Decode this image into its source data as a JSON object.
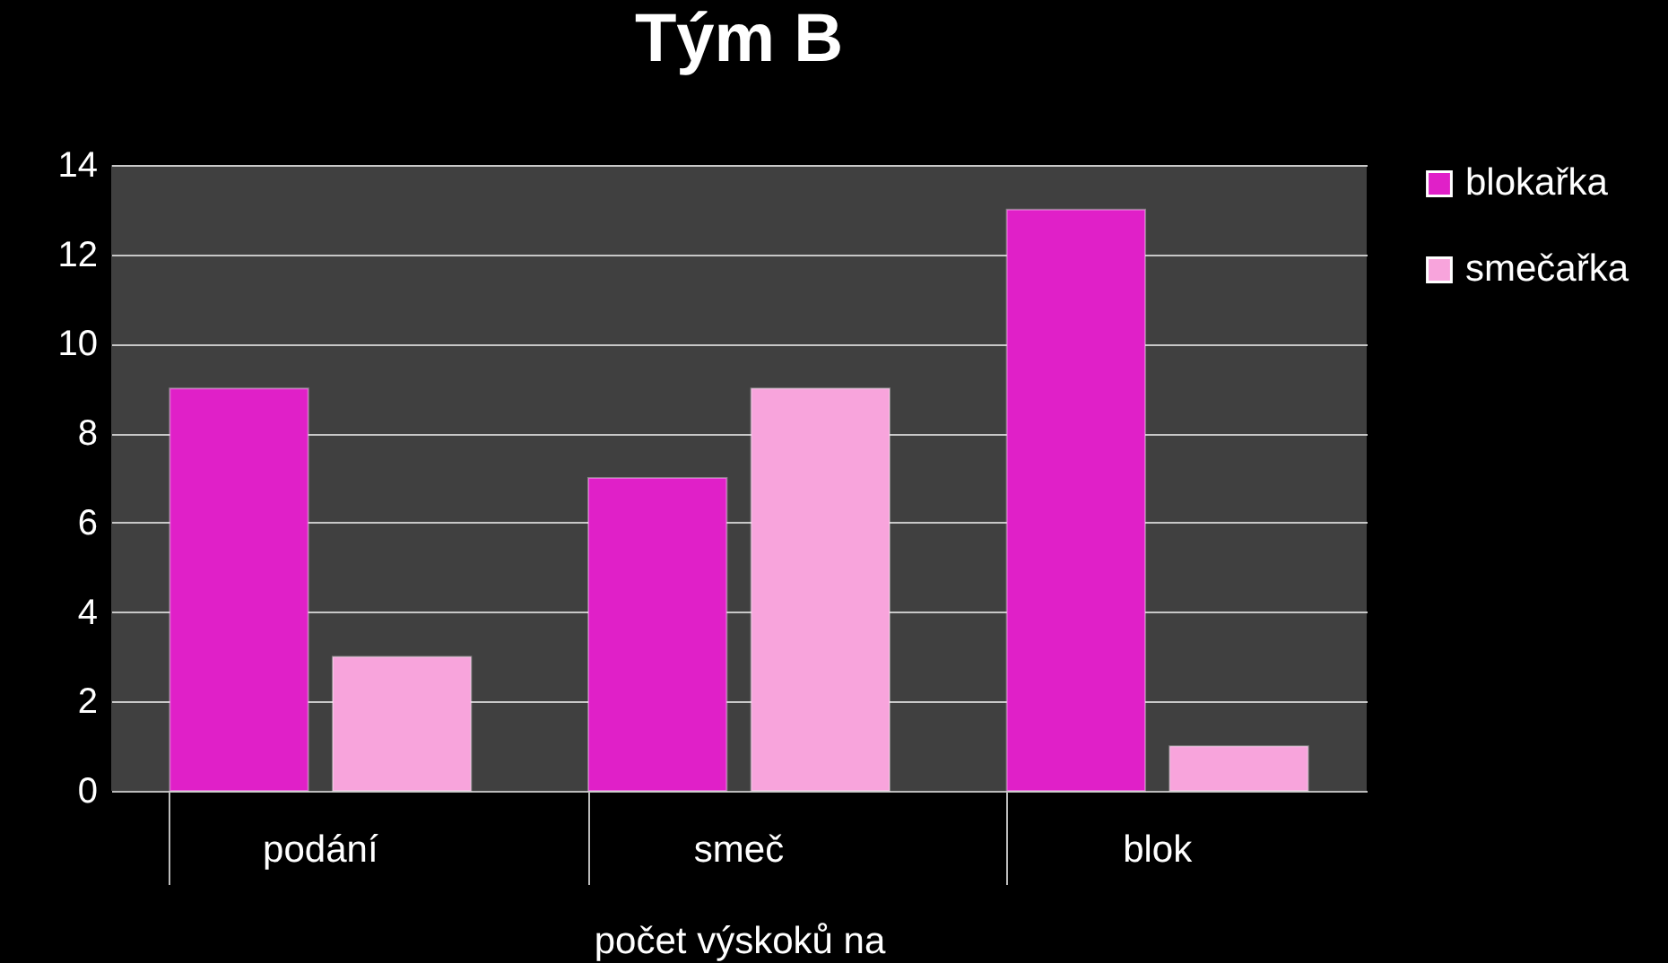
{
  "chart_data": {
    "type": "bar",
    "title": "Tým B",
    "xlabel": "počet výskoků na",
    "categories": [
      "podání",
      "smeč",
      "blok"
    ],
    "series": [
      {
        "name": "blokařka",
        "color": "#e020c8",
        "values": [
          9,
          7,
          13
        ]
      },
      {
        "name": "smečařka",
        "color": "#f8a4dc",
        "values": [
          3,
          9,
          1
        ]
      }
    ],
    "ylim": [
      0,
      14
    ],
    "yticks": [
      0,
      2,
      4,
      6,
      8,
      10,
      12,
      14
    ],
    "grid": "y",
    "legend": "right"
  }
}
